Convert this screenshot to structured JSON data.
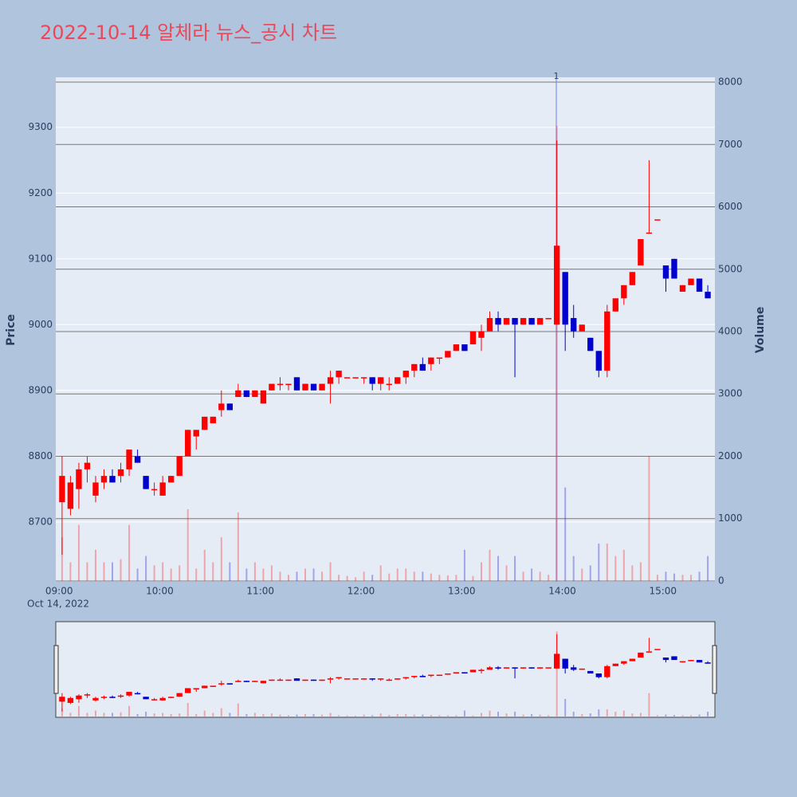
{
  "chart_data": {
    "type": "candlestick",
    "title": "2022-10-14 알체라 뉴스_공시 차트",
    "y_label": "Price",
    "y2_label": "Volume",
    "x": [
      "09:00",
      "09:05",
      "09:10",
      "09:15",
      "09:20",
      "09:25",
      "09:30",
      "09:35",
      "09:40",
      "09:45",
      "09:50",
      "09:55",
      "10:00",
      "10:05",
      "10:10",
      "10:15",
      "10:20",
      "10:25",
      "10:30",
      "10:35",
      "10:40",
      "10:45",
      "10:50",
      "10:55",
      "11:00",
      "11:05",
      "11:10",
      "11:15",
      "11:20",
      "11:25",
      "11:30",
      "11:35",
      "11:40",
      "11:45",
      "11:50",
      "11:55",
      "12:00",
      "12:05",
      "12:10",
      "12:15",
      "12:20",
      "12:25",
      "12:30",
      "12:35",
      "12:40",
      "12:45",
      "12:50",
      "12:55",
      "13:00",
      "13:05",
      "13:10",
      "13:15",
      "13:20",
      "13:25",
      "13:30",
      "13:35",
      "13:40",
      "13:45",
      "13:50",
      "13:55",
      "14:00",
      "14:05",
      "14:10",
      "14:15",
      "14:20",
      "14:25",
      "14:30",
      "14:35",
      "14:40",
      "14:45",
      "14:50",
      "14:55",
      "15:00",
      "15:05",
      "15:10",
      "15:15",
      "15:20",
      "15:25"
    ],
    "open": [
      8730,
      8720,
      8750,
      8780,
      8740,
      8760,
      8770,
      8770,
      8780,
      8800,
      8770,
      8750,
      8740,
      8760,
      8770,
      8800,
      8830,
      8840,
      8850,
      8870,
      8880,
      8890,
      8900,
      8890,
      8880,
      8900,
      8910,
      8910,
      8920,
      8900,
      8910,
      8900,
      8910,
      8920,
      8920,
      8920,
      8920,
      8920,
      8910,
      8910,
      8910,
      8920,
      8930,
      8940,
      8940,
      8950,
      8950,
      8960,
      8970,
      8970,
      8980,
      8990,
      9010,
      9000,
      9010,
      9000,
      9010,
      9000,
      9010,
      9000,
      9080,
      9010,
      8990,
      8980,
      8960,
      8930,
      9020,
      9040,
      9060,
      9090,
      9140,
      9160,
      9090,
      9100,
      9050,
      9060,
      9070,
      9050
    ],
    "high": [
      8800,
      8770,
      8790,
      8800,
      8770,
      8780,
      8780,
      8790,
      8810,
      8810,
      8770,
      8760,
      8770,
      8770,
      8800,
      8840,
      8840,
      8860,
      8860,
      8900,
      8880,
      8910,
      8900,
      8900,
      8900,
      8910,
      8920,
      8910,
      8920,
      8910,
      8910,
      8910,
      8930,
      8930,
      8920,
      8920,
      8920,
      8920,
      8920,
      8920,
      8920,
      8930,
      8940,
      8950,
      8950,
      8950,
      8960,
      8970,
      8970,
      8990,
      9000,
      9020,
      9020,
      9010,
      9010,
      9010,
      9010,
      9010,
      9010,
      9280,
      9080,
      9030,
      9000,
      8980,
      8960,
      9030,
      9040,
      9060,
      9080,
      9130,
      9250,
      9160,
      9090,
      9100,
      9060,
      9070,
      9070,
      9060
    ],
    "low": [
      8650,
      8710,
      8720,
      8760,
      8730,
      8750,
      8760,
      8760,
      8770,
      8790,
      8750,
      8740,
      8740,
      8760,
      8770,
      8800,
      8810,
      8840,
      8850,
      8860,
      8870,
      8890,
      8890,
      8890,
      8880,
      8900,
      8900,
      8900,
      8900,
      8900,
      8900,
      8900,
      8880,
      8910,
      8920,
      8920,
      8910,
      8900,
      8900,
      8900,
      8910,
      8910,
      8920,
      8930,
      8930,
      8940,
      8950,
      8960,
      8960,
      8970,
      8960,
      8990,
      8990,
      9000,
      8920,
      9000,
      9000,
      9000,
      9010,
      9000,
      8960,
      8980,
      8990,
      8960,
      8920,
      8920,
      9020,
      9030,
      9060,
      9090,
      9140,
      9160,
      9050,
      9070,
      9050,
      9060,
      9050,
      9040
    ],
    "close": [
      8770,
      8760,
      8780,
      8790,
      8760,
      8770,
      8760,
      8780,
      8810,
      8790,
      8750,
      8750,
      8760,
      8770,
      8800,
      8840,
      8840,
      8860,
      8860,
      8880,
      8870,
      8900,
      8890,
      8900,
      8900,
      8910,
      8910,
      8910,
      8900,
      8910,
      8900,
      8910,
      8920,
      8930,
      8920,
      8920,
      8920,
      8910,
      8920,
      8910,
      8920,
      8930,
      8940,
      8930,
      8950,
      8950,
      8960,
      8970,
      8960,
      8990,
      8990,
      9010,
      9000,
      9010,
      9000,
      9010,
      9000,
      9010,
      9010,
      9120,
      9000,
      8990,
      9000,
      8960,
      8930,
      9020,
      9040,
      9060,
      9080,
      9130,
      9140,
      9160,
      9070,
      9070,
      9060,
      9070,
      9050,
      9040
    ],
    "volume": [
      700,
      300,
      900,
      300,
      500,
      300,
      300,
      350,
      900,
      200,
      400,
      250,
      300,
      200,
      250,
      1150,
      200,
      500,
      300,
      700,
      300,
      1100,
      200,
      300,
      200,
      250,
      150,
      100,
      150,
      200,
      200,
      150,
      300,
      100,
      80,
      60,
      150,
      100,
      250,
      120,
      200,
      200,
      150,
      150,
      120,
      100,
      90,
      100,
      500,
      80,
      300,
      500,
      400,
      250,
      400,
      150,
      200,
      150,
      100,
      7300,
      1500,
      400,
      200,
      250,
      600,
      600,
      400,
      500,
      250,
      300,
      2000,
      100,
      150,
      120,
      100,
      100,
      150,
      400
    ],
    "increasing_color": "#ff0000",
    "decreasing_color": "#0000cc",
    "xlim": [
      "08:58",
      "15:31"
    ],
    "xticks": [
      "09:00",
      "10:00",
      "11:00",
      "12:00",
      "13:00",
      "14:00",
      "15:00"
    ],
    "x_date_label": "Oct 14, 2022",
    "ylim": [
      8609,
      9376
    ],
    "yticks": [
      8700,
      8800,
      8900,
      9000,
      9100,
      9200,
      9300
    ],
    "y2lim": [
      -13,
      8077
    ],
    "y2ticks": [
      0,
      1000,
      2000,
      3000,
      4000,
      5000,
      6000,
      7000,
      8000
    ],
    "annotations": [
      {
        "x": "13:55",
        "text": "1"
      }
    ],
    "rangeslider": true
  }
}
